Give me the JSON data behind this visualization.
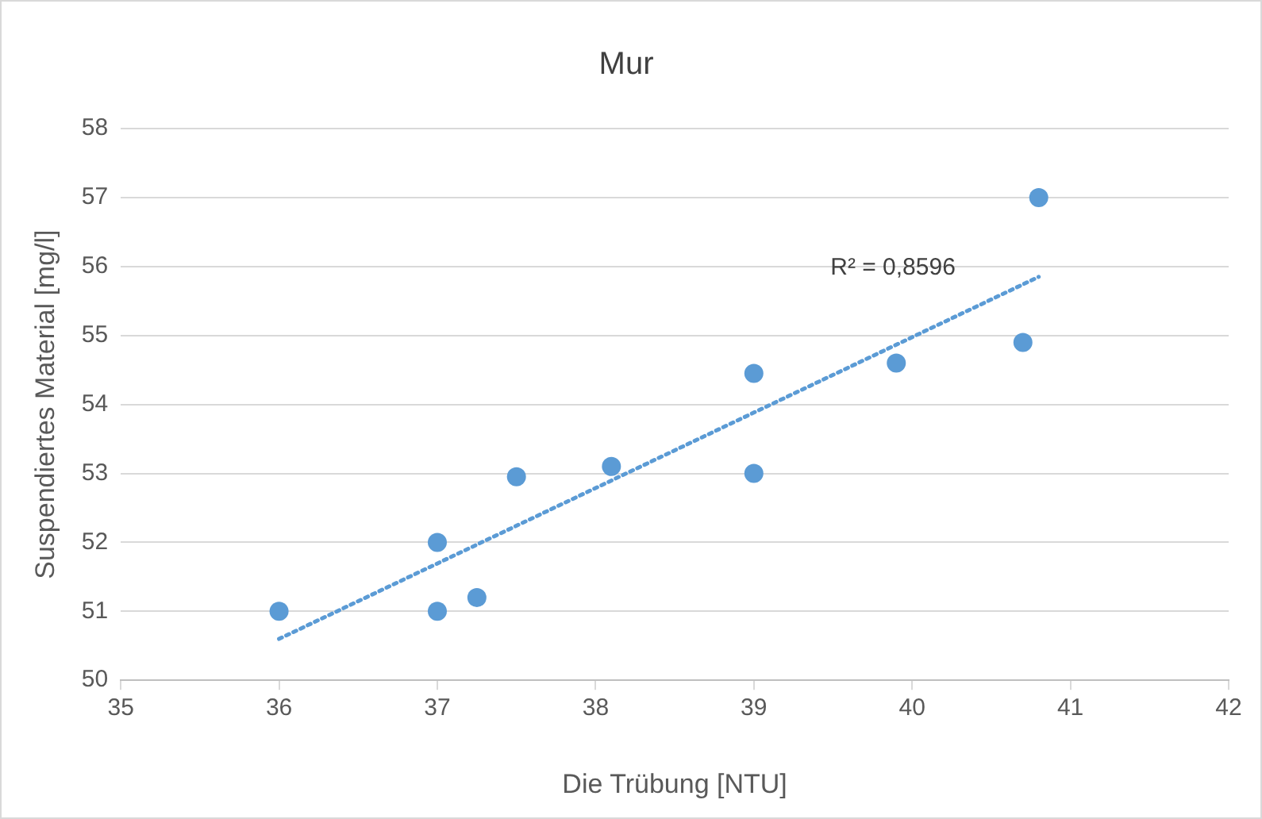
{
  "chart_data": {
    "type": "scatter",
    "title": "Mur",
    "xlabel": "Die Trübung [NTU]",
    "ylabel": "Suspendiertes Material [mg/l]",
    "xlim": [
      35,
      42
    ],
    "xticks": [
      35,
      36,
      37,
      38,
      39,
      40,
      41,
      42
    ],
    "ylim": [
      50,
      58
    ],
    "yticks": [
      50,
      51,
      52,
      53,
      54,
      55,
      56,
      57,
      58
    ],
    "grid": "y",
    "legend": false,
    "marker": "circle",
    "series": [
      {
        "color": "#5b9bd5",
        "x": [
          36,
          37,
          37,
          37.25,
          37.5,
          38.1,
          39,
          39,
          39.9,
          40.7,
          40.8
        ],
        "values": [
          51,
          52,
          51,
          51.2,
          52.95,
          53.1,
          54.45,
          53,
          54.6,
          54.9,
          57
        ]
      },
      {
        "type": "line",
        "color": "#5b9bd5",
        "marker": "none",
        "line_style": "dotted",
        "x": [
          36,
          40.8
        ],
        "values": [
          50.6,
          55.85
        ]
      }
    ],
    "annotations": [
      "R² = 0,8596"
    ]
  }
}
